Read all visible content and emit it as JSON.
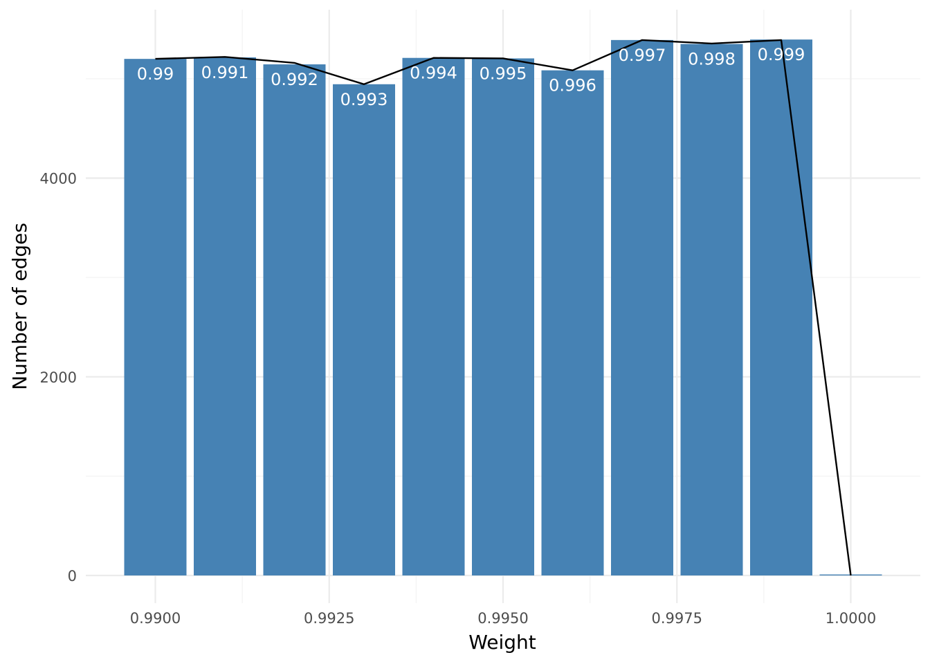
{
  "chart_data": {
    "type": "bar",
    "title": "",
    "xlabel": "Weight",
    "ylabel": "Number of edges",
    "x": [
      0.99,
      0.991,
      0.992,
      0.993,
      0.994,
      0.995,
      0.996,
      0.997,
      0.998,
      0.999,
      1.0
    ],
    "values": [
      5200,
      5215,
      5145,
      4945,
      5210,
      5205,
      5085,
      5390,
      5350,
      5395,
      10
    ],
    "bar_labels": [
      "0.99",
      "0.991",
      "0.992",
      "0.993",
      "0.994",
      "0.995",
      "0.996",
      "0.997",
      "0.998",
      "0.999",
      ""
    ],
    "line": {
      "x": [
        0.99,
        0.991,
        0.992,
        0.993,
        0.994,
        0.995,
        0.996,
        0.997,
        0.998,
        0.999,
        1.0
      ],
      "values": [
        5200,
        5220,
        5160,
        4945,
        5210,
        5205,
        5085,
        5390,
        5355,
        5390,
        0
      ]
    },
    "xlim": [
      0.989,
      1.01
    ],
    "ylim": [
      -270,
      5700
    ],
    "x_ticks": [
      0.99,
      0.9925,
      0.995,
      0.9975,
      1.0
    ],
    "x_tick_labels": [
      "0.9900",
      "0.9925",
      "0.9950",
      "0.9975",
      "1.0000"
    ],
    "y_ticks": [
      0,
      2000,
      4000
    ],
    "y_tick_labels": [
      "0",
      "2000",
      "4000"
    ],
    "colors": {
      "bar": "#4682b4",
      "line": "#000000",
      "bar_label": "#ffffff"
    },
    "grid": true,
    "legend": "none"
  }
}
